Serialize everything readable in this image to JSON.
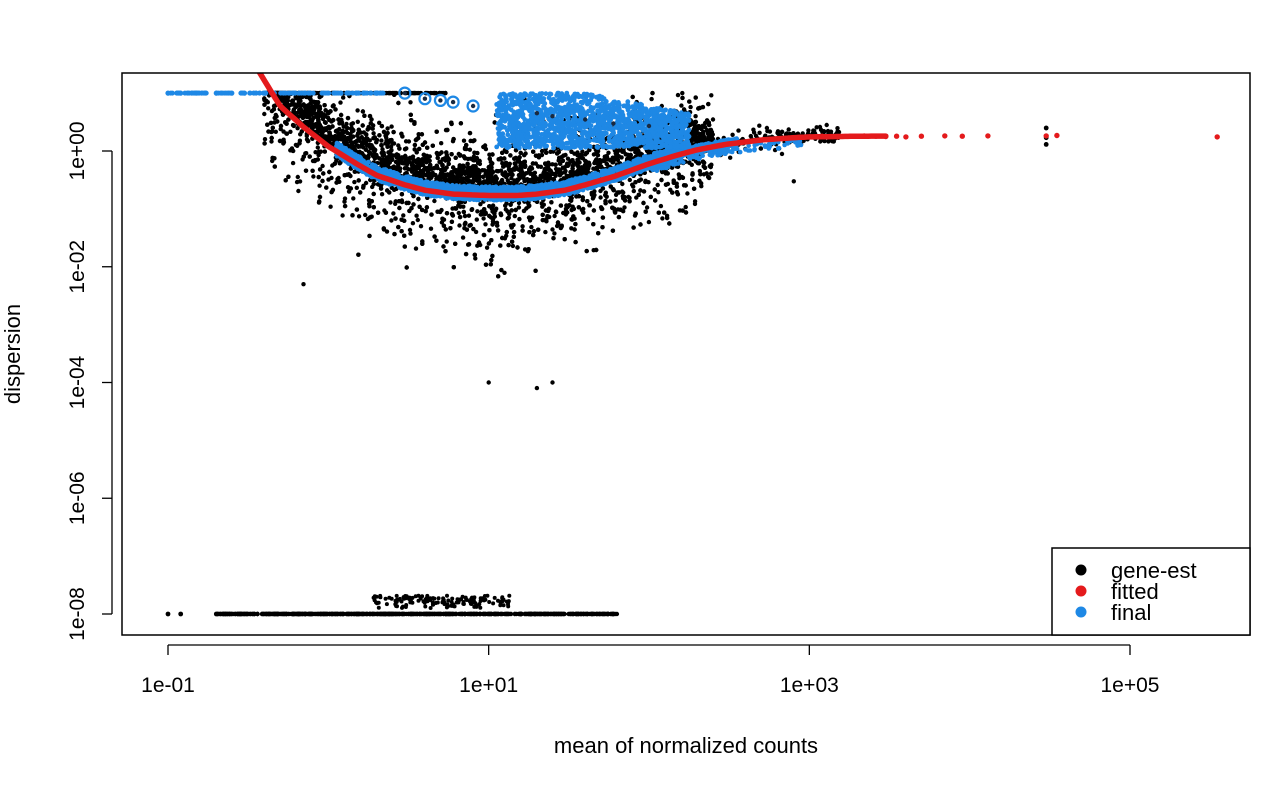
{
  "chart_data": {
    "type": "scatter",
    "title": "",
    "xlabel": "mean of normalized counts",
    "ylabel": "dispersion",
    "xscale": "log10",
    "yscale": "log10",
    "xlim": [
      0.05,
      1000000
    ],
    "ylim": [
      4e-09,
      22
    ],
    "x_ticks": [
      {
        "value": 0.1,
        "label": "1e-01"
      },
      {
        "value": 10,
        "label": "1e+01"
      },
      {
        "value": 1000,
        "label": "1e+03"
      },
      {
        "value": 100000,
        "label": "1e+05"
      }
    ],
    "y_ticks": [
      {
        "value": 1,
        "label": "1e+00"
      },
      {
        "value": 0.01,
        "label": "1e-02"
      },
      {
        "value": 0.0001,
        "label": "1e-04"
      },
      {
        "value": 1e-06,
        "label": "1e-06"
      },
      {
        "value": 1e-08,
        "label": "1e-08"
      }
    ],
    "grid": false,
    "legend": {
      "placement": "bottom-right",
      "entries": [
        {
          "name": "gene-est",
          "color": "#000000"
        },
        {
          "name": "fitted",
          "color": "#E41A1C"
        },
        {
          "name": "final",
          "color": "#1E88E5"
        }
      ]
    },
    "series": [
      {
        "name": "fitted",
        "kind": "line",
        "color": "#E41A1C",
        "points": [
          [
            0.35,
            30
          ],
          [
            0.5,
            6
          ],
          [
            0.7,
            2.6
          ],
          [
            1,
            1.2
          ],
          [
            1.5,
            0.6
          ],
          [
            2,
            0.38
          ],
          [
            3,
            0.26
          ],
          [
            4,
            0.21
          ],
          [
            6,
            0.18
          ],
          [
            10,
            0.17
          ],
          [
            15,
            0.17
          ],
          [
            20,
            0.18
          ],
          [
            30,
            0.21
          ],
          [
            40,
            0.26
          ],
          [
            60,
            0.36
          ],
          [
            100,
            0.6
          ],
          [
            150,
            0.85
          ],
          [
            200,
            1.05
          ],
          [
            300,
            1.3
          ],
          [
            500,
            1.55
          ],
          [
            800,
            1.7
          ],
          [
            1000,
            1.75
          ],
          [
            2000,
            1.8
          ],
          [
            4000,
            1.82
          ],
          [
            10000,
            1.83
          ],
          [
            35000,
            1.83
          ]
        ]
      },
      {
        "name": "fitted",
        "kind": "points",
        "color": "#E41A1C",
        "points": [
          [
            1000,
            1.75
          ],
          [
            1200,
            1.8
          ],
          [
            1500,
            1.75
          ],
          [
            1800,
            1.8
          ],
          [
            2200,
            1.82
          ],
          [
            2600,
            1.8
          ],
          [
            3000,
            1.78
          ],
          [
            3500,
            1.8
          ],
          [
            4000,
            1.75
          ],
          [
            5000,
            1.8
          ],
          [
            7000,
            1.82
          ],
          [
            9000,
            1.8
          ],
          [
            13000,
            1.82
          ],
          [
            30000,
            1.82
          ],
          [
            35000,
            1.85
          ],
          [
            350000,
            1.75
          ]
        ]
      },
      {
        "name": "final",
        "kind": "points",
        "color": "#1E88E5",
        "description": "shrunken dispersion estimates; points at the upper boundary are outliers (circled)",
        "outliers": [
          [
            3,
            10
          ],
          [
            4,
            8
          ],
          [
            5,
            7.5
          ],
          [
            6,
            7
          ],
          [
            8,
            6
          ],
          [
            20,
            4.5
          ],
          [
            25,
            4
          ],
          [
            40,
            3.5
          ],
          [
            60,
            3
          ],
          [
            100,
            2.7
          ]
        ],
        "boundary_row": [
          [
            0.1,
            10
          ],
          [
            0.12,
            10
          ],
          [
            0.2,
            10
          ],
          [
            0.25,
            10
          ],
          [
            0.3,
            10
          ],
          [
            0.4,
            10
          ],
          [
            1.2,
            10
          ],
          [
            1.5,
            10
          ],
          [
            2,
            10
          ]
        ]
      },
      {
        "name": "gene-est",
        "kind": "points",
        "color": "#000000",
        "description": "gene-wise dispersion estimates; genes with zero dispersion plotted at the lower boundary",
        "lower_boundary": [
          [
            0.1,
            1e-08
          ],
          [
            0.12,
            1e-08
          ],
          [
            0.2,
            1e-08
          ],
          [
            0.6,
            1e-08
          ],
          [
            60,
            1e-08
          ]
        ],
        "extreme_points": [
          [
            0.7,
            0.005
          ],
          [
            10,
            0.0001
          ],
          [
            20,
            8e-05
          ],
          [
            25,
            0.0001
          ],
          [
            800,
            0.3
          ],
          [
            30000,
            2.5
          ],
          [
            30000,
            1.3
          ]
        ]
      }
    ]
  }
}
